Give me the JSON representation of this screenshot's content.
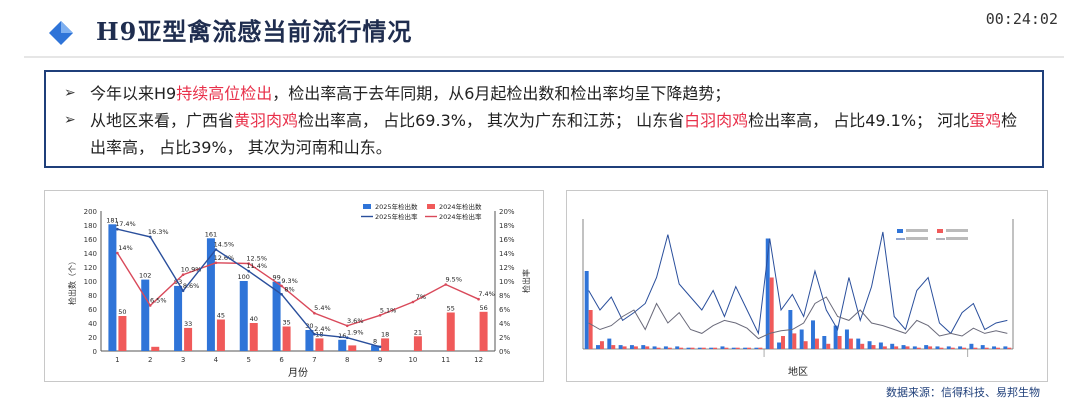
{
  "header": {
    "title": "H9亚型禽流感当前流行情况",
    "timer": "00:24:02"
  },
  "summary": {
    "bullet1": {
      "p1": "今年以来H9",
      "hl1": "持续高位检出",
      "p2": "，检出率高于去年同期，从6月起检出数和检出率均呈下降趋势；"
    },
    "bullet2": {
      "p1": "从地区来看，广西省",
      "hl1": "黄羽肉鸡",
      "p2": "检出率高， 占比69.3%， 其次为广东和江苏； 山东省",
      "hl2": "白羽肉鸡",
      "p3": "检出率高， 占比49.1%； 河北",
      "hl3": "蛋鸡",
      "p4": "检出率高， 占比39%， 其次为河南和山东。"
    }
  },
  "colors": {
    "bar2025": "#2f74d8",
    "bar2024": "#f05a5a",
    "line2025": "#2a4f9c",
    "line2024": "#d9495a",
    "accent": "#1f3f7a"
  },
  "chart_data": [
    {
      "type": "bar",
      "title": "",
      "xlabel": "月份",
      "ylabel": "检出数（个）",
      "y2label": "检出率",
      "categories": [
        "1",
        "2",
        "3",
        "4",
        "5",
        "6",
        "7",
        "8",
        "9",
        "10",
        "11",
        "12"
      ],
      "ylim": [
        0,
        200
      ],
      "yticks": [
        "0",
        "20",
        "40",
        "60",
        "80",
        "100",
        "120",
        "140",
        "160",
        "180",
        "200"
      ],
      "y2lim": [
        0,
        20
      ],
      "y2ticks": [
        "0%",
        "2%",
        "4%",
        "6%",
        "8%",
        "10%",
        "12%",
        "14%",
        "16%",
        "18%",
        "20%"
      ],
      "legend": [
        "2025年检出数",
        "2024年检出数",
        "2025年检出率",
        "2024年检出率"
      ],
      "legend_position": "top-right",
      "series": [
        {
          "name": "2025年检出数",
          "kind": "bar",
          "values": [
            181,
            102,
            93,
            161,
            100,
            99,
            30,
            16,
            8,
            null,
            null,
            null
          ],
          "labels": [
            "181",
            "102",
            "93",
            "161",
            "100",
            "99",
            "30",
            "16",
            "8",
            "",
            "",
            ""
          ]
        },
        {
          "name": "2024年检出数",
          "kind": "bar",
          "values": [
            50,
            6,
            33,
            45,
            40,
            35,
            18,
            8,
            18,
            21,
            55,
            56
          ],
          "labels": [
            "50",
            "",
            "33",
            "45",
            "40",
            "35",
            "18",
            "",
            "18",
            "21",
            "55",
            "56"
          ]
        },
        {
          "name": "2025年检出率",
          "kind": "line",
          "axis": "right",
          "values": [
            17.4,
            16.3,
            8.6,
            14.5,
            11.4,
            8.1,
            2.4,
            1.9,
            0.6,
            null,
            null,
            null
          ],
          "labels": [
            "17.4%",
            "16.3%",
            "8.6%",
            "14.5%",
            "11.4%",
            "8%",
            "2.4%",
            "1.9%",
            "",
            "",
            "",
            ""
          ]
        },
        {
          "name": "2024年检出率",
          "kind": "line",
          "axis": "right",
          "values": [
            14,
            6.5,
            10.9,
            12.6,
            12.5,
            9.3,
            5.4,
            3.6,
            5.1,
            7,
            9.5,
            7.4
          ],
          "labels": [
            "14%",
            "6.5%",
            "10.9%",
            "12.6%",
            "12.5%",
            "9.3%",
            "5.4%",
            "3.6%",
            "5.1%",
            "7%",
            "9.5%",
            "7.4%"
          ]
        }
      ]
    },
    {
      "type": "bar",
      "title": "",
      "xlabel": "地区",
      "series": [
        {
          "kind": "bar",
          "color": "#2f74d8",
          "values": [
            60,
            3,
            8,
            3,
            3,
            3,
            2,
            2,
            2,
            1,
            1,
            1,
            2,
            1,
            1,
            1,
            85,
            5,
            30,
            15,
            22,
            10,
            18,
            15,
            8,
            6,
            5,
            4,
            3,
            2,
            3,
            2,
            2,
            2,
            4,
            3,
            2,
            2
          ]
        },
        {
          "kind": "bar",
          "color": "#f05a5a",
          "values": [
            30,
            6,
            3,
            2,
            2,
            2,
            1,
            1,
            1,
            1,
            1,
            1,
            1,
            1,
            1,
            1,
            55,
            10,
            12,
            6,
            8,
            4,
            10,
            8,
            4,
            3,
            2,
            2,
            2,
            1,
            2,
            1,
            1,
            1,
            1,
            1,
            1,
            1
          ]
        },
        {
          "kind": "line",
          "color": "#2a4f9c",
          "values": [
            45,
            30,
            40,
            22,
            28,
            35,
            55,
            88,
            50,
            40,
            30,
            45,
            25,
            48,
            30,
            12,
            85,
            30,
            42,
            25,
            60,
            30,
            15,
            55,
            22,
            48,
            90,
            25,
            15,
            45,
            55,
            20,
            12,
            28,
            35,
            15,
            20,
            22
          ]
        },
        {
          "kind": "line",
          "color": "#6a6a7a",
          "values": [
            20,
            15,
            18,
            25,
            30,
            15,
            35,
            20,
            28,
            15,
            12,
            18,
            22,
            20,
            16,
            8,
            12,
            14,
            15,
            20,
            35,
            40,
            25,
            22,
            30,
            20,
            18,
            15,
            12,
            22,
            18,
            10,
            12,
            10,
            16,
            12,
            14,
            12
          ]
        }
      ]
    }
  ],
  "footer": {
    "source": "数据来源：信得科技、易邦生物"
  }
}
